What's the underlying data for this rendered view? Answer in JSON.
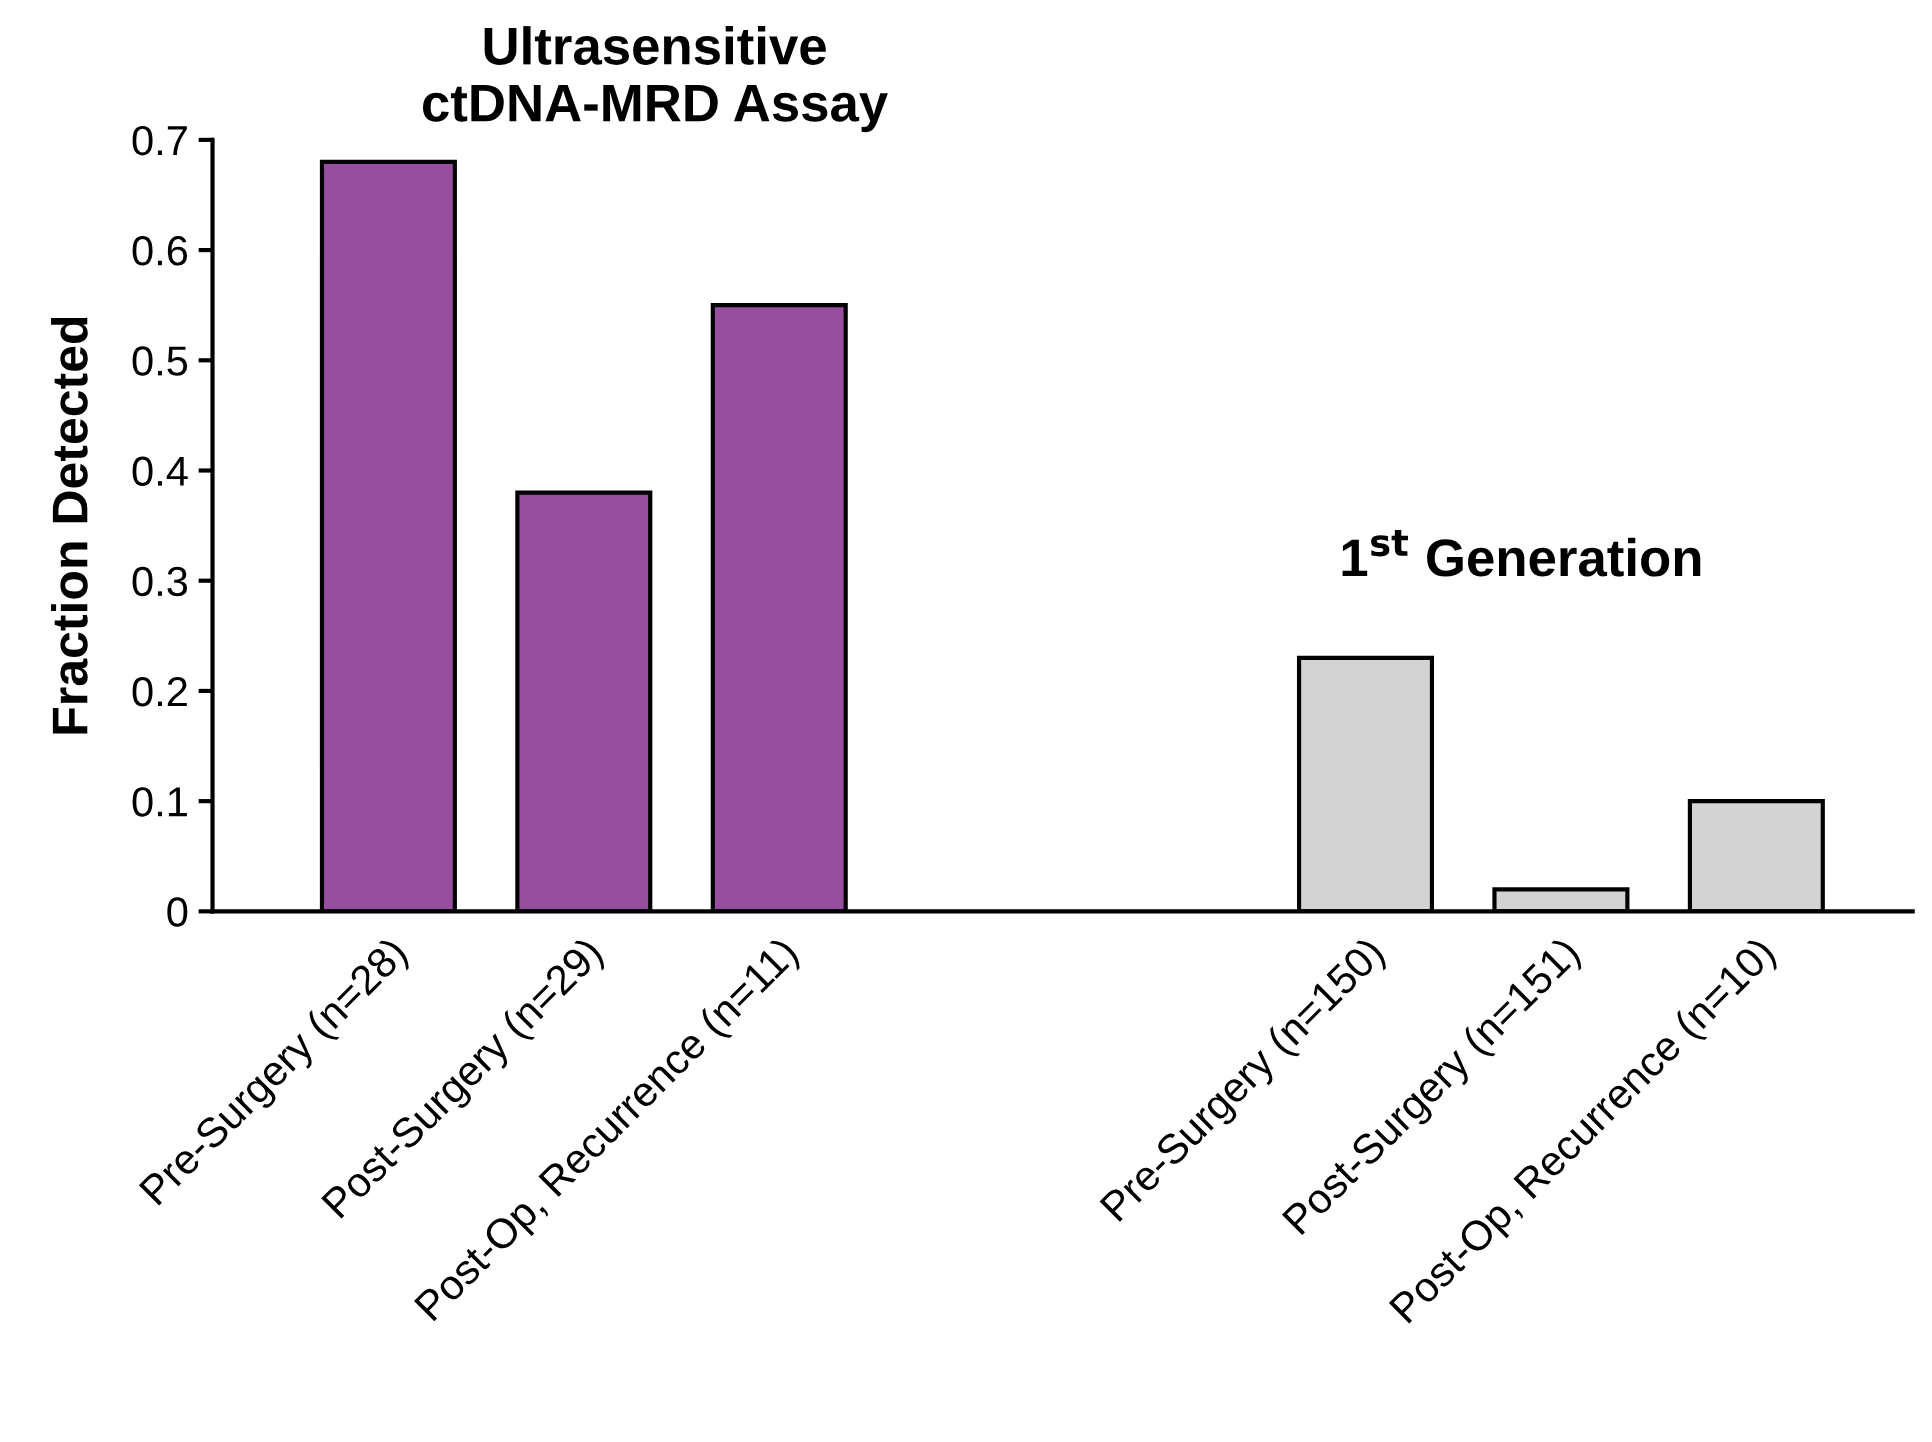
{
  "chart_data": {
    "type": "bar",
    "ylabel": "Fraction Detected",
    "categories": [
      "Pre-Surgery (n=28)",
      "Post-Surgery (n=29)",
      "Post-Op, Recurrence (n=11)",
      null,
      null,
      "Pre-Surgery (n=150)",
      "Post-Surgery (n=151)",
      "Post-Op, Recurrence (n=10)"
    ],
    "values": [
      0.68,
      0.38,
      0.55,
      null,
      null,
      0.23,
      0.02,
      0.1
    ],
    "colors": [
      "#954f9e",
      "#954f9e",
      "#954f9e",
      null,
      null,
      "#d3d3d3",
      "#d3d3d3",
      "#d3d3d3"
    ],
    "ylim": [
      0,
      0.7
    ],
    "yticks": [
      0,
      0.1,
      0.2,
      0.3,
      0.4,
      0.5,
      0.6,
      0.7
    ],
    "grid": false,
    "annotations": [
      "Ultrasensitive\nctDNA-MRD Assay",
      "1$^{st}$ Generation"
    ]
  }
}
